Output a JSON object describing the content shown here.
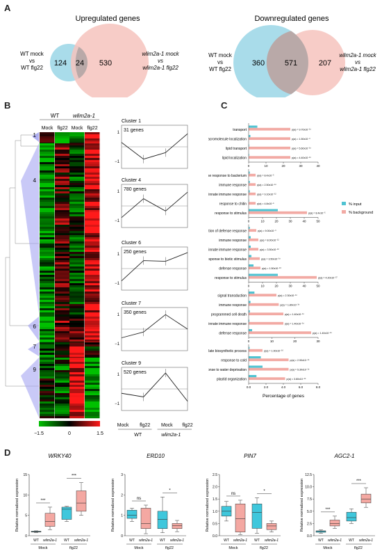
{
  "panels": {
    "a": "A",
    "b": "B",
    "c": "C",
    "d": "D"
  },
  "venn": {
    "up": {
      "title": "Upregulated genes",
      "left_label": [
        "WT mock",
        "vs",
        "WT flg22"
      ],
      "right_label": [
        "wlim2a-1 mock",
        "vs",
        "wlim2a-1 flg22"
      ],
      "left_only": "124",
      "overlap": "24",
      "right_only": "530"
    },
    "down": {
      "title": "Downregulated genes",
      "left_label": [
        "WT mock",
        "vs",
        "WT flg22"
      ],
      "right_label": [
        "wlim2a-1 mock",
        "vs",
        "wlim2a-1 flg22"
      ],
      "left_only": "360",
      "overlap": "571",
      "right_only": "207"
    },
    "colors": {
      "left": "#a9dcea",
      "right": "#f6c3bd"
    }
  },
  "heatmap": {
    "group_labels": [
      "WT",
      "wlim2a-1"
    ],
    "column_labels": [
      "Mock",
      "flg22",
      "Mock",
      "flg22"
    ],
    "cluster_labels": [
      "1",
      "4",
      "6",
      "7",
      "9"
    ],
    "colorbar": {
      "min": "−1.5",
      "mid": "0",
      "max": "1.5"
    },
    "colors": {
      "low": "#00c000",
      "mid": "#000000",
      "high": "#ff1a1a"
    }
  },
  "clusters": [
    {
      "name": "Cluster 1",
      "genes": "31 genes",
      "profile": [
        0.3,
        -0.85,
        -0.4,
        0.9
      ]
    },
    {
      "name": "Cluster 4",
      "genes": "780 genes",
      "profile": [
        -0.8,
        0.5,
        -0.35,
        0.95
      ]
    },
    {
      "name": "Cluster 6",
      "genes": "250 genes",
      "profile": [
        -0.85,
        0.55,
        0.5,
        1.1
      ]
    },
    {
      "name": "Cluster 7",
      "genes": "350 genes",
      "profile": [
        -0.6,
        -0.2,
        1.0,
        0.0
      ]
    },
    {
      "name": "Cluster 9",
      "genes": "520 genes",
      "profile": [
        -0.3,
        -0.55,
        1.1,
        -0.85
      ]
    }
  ],
  "profile_axis": {
    "top": "1",
    "bottom": "−1",
    "x_labels": [
      "Mock",
      "flg22",
      "Mock",
      "flg22"
    ],
    "group_labels": [
      "WT",
      "wlim2a-1"
    ]
  },
  "go_chart": {
    "x_axis_label": "Percentage of genes",
    "legend": [
      "% input",
      "% background"
    ],
    "colors": {
      "input": "#4fc3d2",
      "background": "#f2aaa4"
    },
    "groups": [
      {
        "max": 40,
        "ticks": [
          "0",
          "10",
          "20",
          "30",
          "40"
        ],
        "terms": [
          {
            "label": "transport",
            "input": 5.0,
            "background": 24.0,
            "p": "p(a) = 9.70x10⁻¹⁰"
          },
          {
            "label": "macromolecule localization",
            "input": 1.0,
            "background": 24.0,
            "p": "p(a) = 1.50x10⁻⁹"
          },
          {
            "label": "lipid transport",
            "input": 0.3,
            "background": 24.0,
            "p": "p(a) = 5.60x10⁻¹⁰"
          },
          {
            "label": "lipid localization",
            "input": 0.3,
            "background": 24.0,
            "p": "p(a) = 4.40x10⁻¹⁰"
          }
        ]
      },
      {
        "max": 50,
        "ticks": [
          "0",
          "10",
          "20",
          "30",
          "40",
          "50"
        ],
        "terms": [
          {
            "label": "defense response to bacterium",
            "input": 0.8,
            "background": 5.0,
            "p": "p(a) = 8.4x10⁻⁵"
          },
          {
            "label": "immune response",
            "input": 0.8,
            "background": 5.0,
            "p": "p(a) = 2.50x10⁻¹⁰"
          },
          {
            "label": "innate immune response",
            "input": 0.8,
            "background": 5.0,
            "p": "p(a) = 9.10x10⁻¹²"
          },
          {
            "label": "response to chitin",
            "input": 0.3,
            "background": 5.0,
            "p": "p(a) = 4.8x10⁻⁵"
          },
          {
            "label": "response to stimulus",
            "input": 21.0,
            "background": 42.0,
            "p": "p(a) = 8.4x10⁻⁵"
          }
        ]
      },
      {
        "max": 50,
        "ticks": [
          "0",
          "10",
          "20",
          "30",
          "40",
          "50"
        ],
        "terms": [
          {
            "label": "regulation of defense response",
            "input": 0.8,
            "background": 5.5,
            "p": "p(a) = 9.00x10⁻⁹"
          },
          {
            "label": "immune response",
            "input": 1.5,
            "background": 7.0,
            "p": "p(a) = 8.00x10⁻¹²"
          },
          {
            "label": "innate immune response",
            "input": 1.5,
            "background": 7.0,
            "p": "p(a) = 3.50x10⁻¹²"
          },
          {
            "label": "response to biotic stimulus",
            "input": 2.0,
            "background": 8.0,
            "p": "p(a) = 3.50x10⁻¹⁰"
          },
          {
            "label": "defense response",
            "input": 3.5,
            "background": 8.5,
            "p": "p(a) = 1.50x10⁻¹³"
          },
          {
            "label": "response to stimulus",
            "input": 21.0,
            "background": 49.0,
            "p": "p(a) = 4.20x10⁻²⁷"
          }
        ]
      },
      {
        "max": 30,
        "ticks": [
          "0",
          "10",
          "20",
          "30"
        ],
        "terms": [
          {
            "label": "signal transduction",
            "input": 2.5,
            "background": 12.0,
            "p": "p(a) = 2.30x10⁻¹⁰"
          },
          {
            "label": "immune response",
            "input": 0.8,
            "background": 13.0,
            "p": "p(a) = 1.80x10⁻¹⁰"
          },
          {
            "label": "programmed cell death",
            "input": 0.5,
            "background": 15.0,
            "p": "p(a) = 1.40x10⁻¹⁰"
          },
          {
            "label": "innate immune response",
            "input": 0.3,
            "background": 15.0,
            "p": "p(a) = 1.40x10⁻¹⁰"
          },
          {
            "label": "defense response",
            "input": 1.5,
            "background": 27.0,
            "p": "p(a) = 1.40x10⁻¹⁰"
          }
        ]
      },
      {
        "max": 8,
        "ticks": [
          "0.0",
          "2.0",
          "4.0",
          "6.0",
          "8.0"
        ],
        "terms": [
          {
            "label": "glucosinolate biosynthetic process",
            "input": 0.1,
            "background": 1.6,
            "p": "p(a) = 1.90x10⁻¹⁶"
          },
          {
            "label": "response to cold",
            "input": 1.4,
            "background": 4.6,
            "p": "p(a) = 2.90x10⁻¹⁰"
          },
          {
            "label": "response to water deprivation",
            "input": 1.6,
            "background": 4.6,
            "p": "p(a) = 5.30x10⁻¹⁰"
          },
          {
            "label": "plastid organization",
            "input": 0.9,
            "background": 4.2,
            "p": "p(a) = 3.60x10⁻¹⁰"
          }
        ]
      }
    ]
  },
  "boxplots": {
    "y_label": "Relative normalized expression",
    "x_labels": [
      "WT",
      "wlim2a-1",
      "WT",
      "wlim2a-1"
    ],
    "group_labels": [
      "Mock",
      "flg22"
    ],
    "colors": {
      "wt": "#3fc7dc",
      "mutant": "#f4a8a2"
    },
    "charts": [
      {
        "gene": "WRKY40",
        "ymax": 15,
        "ticks": [
          "0",
          "5",
          "10",
          "15"
        ],
        "boxes": [
          [
            0.8,
            0.9,
            1.0,
            1.1,
            1.2
          ],
          [
            1.5,
            2.3,
            3.5,
            5.5,
            7.0
          ],
          [
            3.5,
            4.0,
            6.5,
            7.0,
            7.2
          ],
          [
            5.0,
            6.0,
            8.0,
            11.0,
            13.0
          ]
        ],
        "sig": [
          "***",
          "***"
        ]
      },
      {
        "gene": "ERD10",
        "ymax": 3,
        "ticks": [
          "0",
          "1",
          "2",
          "3"
        ],
        "boxes": [
          [
            0.7,
            0.85,
            1.0,
            1.25,
            1.35
          ],
          [
            0.1,
            0.35,
            0.6,
            1.35,
            1.5
          ],
          [
            0.15,
            0.35,
            0.8,
            1.2,
            1.9
          ],
          [
            0.2,
            0.35,
            0.5,
            0.6,
            0.75
          ]
        ],
        "sig": [
          "ns",
          "*"
        ]
      },
      {
        "gene": "PIN7",
        "ymax": 2.5,
        "ticks": [
          "0.0",
          "0.5",
          "1.0",
          "1.5",
          "2.0",
          "2.5"
        ],
        "boxes": [
          [
            0.6,
            0.8,
            1.0,
            1.2,
            1.4
          ],
          [
            0.05,
            0.15,
            0.7,
            1.3,
            1.45
          ],
          [
            0.1,
            0.3,
            0.95,
            1.3,
            1.55
          ],
          [
            0.15,
            0.25,
            0.4,
            0.5,
            0.6
          ]
        ],
        "sig": [
          "ns",
          "*"
        ]
      },
      {
        "gene": "AGC2-1",
        "ymax": 12.5,
        "ticks": [
          "0.0",
          "2.5",
          "5.0",
          "7.5",
          "10.0",
          "12.5"
        ],
        "boxes": [
          [
            0.5,
            0.7,
            0.9,
            1.0,
            1.2
          ],
          [
            1.5,
            2.0,
            2.5,
            3.2,
            4.0
          ],
          [
            2.5,
            3.0,
            3.7,
            4.8,
            5.5
          ],
          [
            5.8,
            6.7,
            7.5,
            8.5,
            9.8
          ]
        ],
        "sig": [
          "***",
          "***"
        ]
      }
    ]
  }
}
